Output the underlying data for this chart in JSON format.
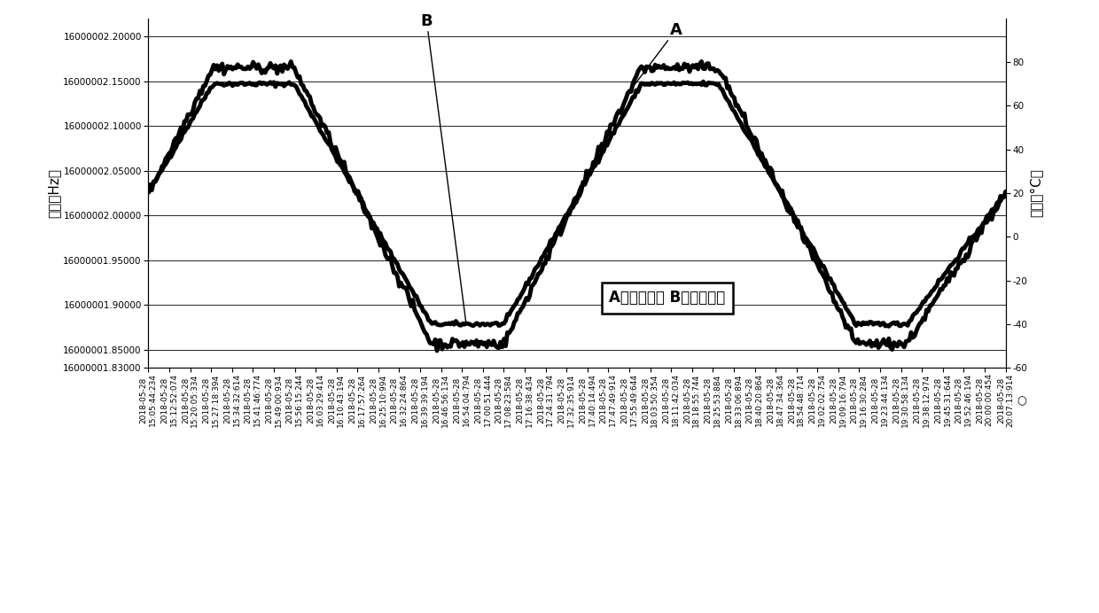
{
  "freq_ylabel": "频率（Hz）",
  "temp_ylabel": "温度（°C）",
  "legend_text": "A：频率曲线 B：温度曲线",
  "label_A": "A",
  "label_B": "B",
  "freq_ylim_min": 16000001.83,
  "freq_ylim_max": 16000002.22,
  "freq_yticks": [
    16000002.2,
    16000002.15,
    16000002.1,
    16000002.05,
    16000002.0,
    16000001.95,
    16000001.9,
    16000001.85,
    16000001.83
  ],
  "temp_ylim_min": -60,
  "temp_ylim_max": 100,
  "temp_yticks": [
    80,
    60,
    40,
    20,
    0,
    -20,
    -40,
    -60
  ],
  "line_color": "#000000",
  "line_width": 3.5,
  "background_color": "#ffffff",
  "font_size_ticks": 7.5,
  "font_size_labels": 11,
  "font_size_legend": 12,
  "num_points": 500,
  "temp_keypoints_x": [
    0.0,
    0.075,
    0.17,
    0.33,
    0.415,
    0.575,
    0.665,
    0.825,
    0.885,
    1.0
  ],
  "temp_keypoints_v": [
    20,
    70,
    70,
    -40,
    -40,
    70,
    70,
    -40,
    -40,
    20
  ],
  "freq_at_20": 16000002.05,
  "freq_at_70": 16000002.165,
  "freq_at_neg40": 16000001.857,
  "x_labels": [
    "2018-05-28\n15:05:44:234",
    "2018-05-28\n15:12:52:074",
    "2018-05-28\n15:20:05:334",
    "2018-05-28\n15:27:18:394",
    "2018-05-28\n15:34:32:614",
    "2018-05-28\n15:41:46:774",
    "2018-05-28\n15:49:00:934",
    "2018-05-28\n15:56:15:244",
    "2018-05-28\n16:03:29:414",
    "2018-05-28\n16:10:43:194",
    "2018-05-28\n16:17:57:264",
    "2018-05-28\n16:25:10:994",
    "2018-05-28\n16:32:24:864",
    "2018-05-28\n16:39:39:194",
    "2018-05-28\n16:46:56:134",
    "2018-05-28\n16:54:04:794",
    "2018-05-28\n17:00:51:444",
    "2018-05-28\n17:08:23:584",
    "2018-05-28\n17:16:38:434",
    "2018-05-28\n17:24:31:794",
    "2018-05-28\n17:32:35:914",
    "2018-05-28\n17:40:14:494",
    "2018-05-28\n17:47:49:914",
    "2018-05-28\n17:55:49:644",
    "2018-05-28\n18:03:50:354",
    "2018-05-28\n18:11:42:034",
    "2018-05-28\n18:18:55:744",
    "2018-05-28\n18:25:53:884",
    "2018-05-28\n18:33:06:894",
    "2018-05-28\n18:40:20:864",
    "2018-05-28\n18:47:34:364",
    "2018-05-28\n18:54:48:714",
    "2018-05-28\n19:02:02:754",
    "2018-05-28\n19:09:16:794",
    "2018-05-28\n19:16:30:284",
    "2018-05-28\n19:23:44:134",
    "2018-05-28\n19:30:58:134",
    "2018-05-28\n19:38:12:974",
    "2018-05-28\n19:45:31:644",
    "2018-05-28\n19:52:46:194",
    "2018-05-28\n20:00:00:454",
    "2018-05-28\n20:07:13:914"
  ]
}
